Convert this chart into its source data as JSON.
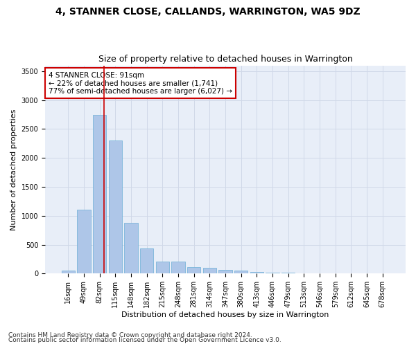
{
  "title1": "4, STANNER CLOSE, CALLANDS, WARRINGTON, WA5 9DZ",
  "title2": "Size of property relative to detached houses in Warrington",
  "xlabel": "Distribution of detached houses by size in Warrington",
  "ylabel": "Number of detached properties",
  "categories": [
    "16sqm",
    "49sqm",
    "82sqm",
    "115sqm",
    "148sqm",
    "182sqm",
    "215sqm",
    "248sqm",
    "281sqm",
    "314sqm",
    "347sqm",
    "380sqm",
    "413sqm",
    "446sqm",
    "479sqm",
    "513sqm",
    "546sqm",
    "579sqm",
    "612sqm",
    "645sqm",
    "678sqm"
  ],
  "values": [
    50,
    1100,
    2750,
    2300,
    880,
    430,
    205,
    205,
    115,
    100,
    60,
    50,
    30,
    20,
    15,
    8,
    5,
    3,
    2,
    1,
    0
  ],
  "bar_color": "#aec6e8",
  "bar_edge_color": "#6baed6",
  "grid_color": "#d0d8e8",
  "background_color": "#e8eef8",
  "vline_color": "#cc0000",
  "annotation_text": "4 STANNER CLOSE: 91sqm\n← 22% of detached houses are smaller (1,741)\n77% of semi-detached houses are larger (6,027) →",
  "annotation_box_color": "#ffffff",
  "annotation_box_edge": "#cc0000",
  "footer1": "Contains HM Land Registry data © Crown copyright and database right 2024.",
  "footer2": "Contains public sector information licensed under the Open Government Licence v3.0.",
  "ylim": [
    0,
    3600
  ],
  "yticks": [
    0,
    500,
    1000,
    1500,
    2000,
    2500,
    3000,
    3500
  ],
  "title_fontsize": 10,
  "subtitle_fontsize": 9,
  "axis_fontsize": 8,
  "tick_fontsize": 7,
  "annotation_fontsize": 7.5,
  "footer_fontsize": 6.5
}
